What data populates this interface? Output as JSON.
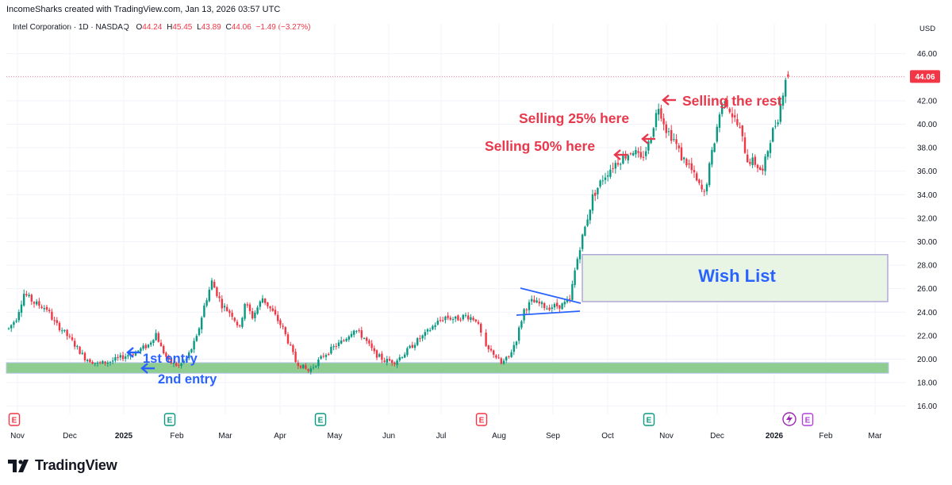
{
  "header": {
    "attribution": "IncomeSharks created with TradingView.com, Jan 13, 2026 03:57 UTC"
  },
  "legend": {
    "symbol": "Intel Corporation · 1D · NASDAQ",
    "o_label": "O",
    "o_value": "44.24",
    "h_label": "H",
    "h_value": "45.45",
    "l_label": "L",
    "l_value": "43.89",
    "c_label": "C",
    "c_value": "44.06",
    "change": "−1.49 (−3.27%)"
  },
  "footer": {
    "brand": "TradingView"
  },
  "colors": {
    "up": "#089981",
    "down": "#f23645",
    "annotation_red": "#e8384b",
    "annotation_blue": "#2962ff",
    "support_zone": "#8fcc8f",
    "wishlist_fill": "#e8f5e4",
    "wishlist_border": "#b0a9d6",
    "last_price_badge": "#f23645"
  },
  "chart_data": {
    "type": "candlestick",
    "currency_label": "USD",
    "y_ticks": [
      "16.00",
      "18.00",
      "20.00",
      "22.00",
      "24.00",
      "26.00",
      "28.00",
      "30.00",
      "32.00",
      "34.00",
      "36.00",
      "38.00",
      "40.00",
      "42.00",
      "44.00",
      "46.00"
    ],
    "ylim": [
      15.3,
      47.6
    ],
    "x_tick_labels": [
      "Nov",
      "Dec",
      "2025",
      "Feb",
      "Mar",
      "Apr",
      "May",
      "Jun",
      "Jul",
      "Aug",
      "Sep",
      "Oct",
      "Nov",
      "Dec",
      "2026",
      "Feb",
      "Mar"
    ],
    "x_tick_bold": [
      false,
      false,
      true,
      false,
      false,
      false,
      false,
      false,
      false,
      false,
      false,
      false,
      false,
      false,
      true,
      false,
      false
    ],
    "last_price": "44.06",
    "last_price_value": 44.06,
    "trend_anchors": [
      [
        0,
        22.6
      ],
      [
        3,
        23.5
      ],
      [
        6,
        25.6
      ],
      [
        10,
        24.8
      ],
      [
        15,
        24.3
      ],
      [
        18,
        23.1
      ],
      [
        21,
        22.5
      ],
      [
        25,
        21.5
      ],
      [
        30,
        20.1
      ],
      [
        35,
        19.6
      ],
      [
        40,
        19.8
      ],
      [
        45,
        20.2
      ],
      [
        50,
        20.6
      ],
      [
        55,
        21.2
      ],
      [
        58,
        22.2
      ],
      [
        60,
        21.0
      ],
      [
        63,
        19.8
      ],
      [
        67,
        19.4
      ],
      [
        70,
        20.0
      ],
      [
        74,
        21.8
      ],
      [
        77,
        24.5
      ],
      [
        80,
        26.6
      ],
      [
        84,
        24.6
      ],
      [
        88,
        23.8
      ],
      [
        91,
        22.6
      ],
      [
        93,
        24.8
      ],
      [
        96,
        23.6
      ],
      [
        100,
        25.2
      ],
      [
        104,
        24.0
      ],
      [
        108,
        22.6
      ],
      [
        111,
        21.0
      ],
      [
        113,
        19.8
      ],
      [
        116,
        19.3
      ],
      [
        118,
        19.0
      ],
      [
        120,
        19.4
      ],
      [
        124,
        20.3
      ],
      [
        128,
        21.0
      ],
      [
        132,
        21.6
      ],
      [
        136,
        22.6
      ],
      [
        140,
        21.8
      ],
      [
        144,
        20.5
      ],
      [
        148,
        19.9
      ],
      [
        152,
        19.8
      ],
      [
        156,
        20.5
      ],
      [
        160,
        21.4
      ],
      [
        164,
        22.1
      ],
      [
        168,
        23.0
      ],
      [
        172,
        23.6
      ],
      [
        176,
        23.4
      ],
      [
        180,
        23.7
      ],
      [
        184,
        23.4
      ],
      [
        188,
        20.9
      ],
      [
        191,
        20.5
      ],
      [
        194,
        19.6
      ],
      [
        197,
        20.2
      ],
      [
        200,
        21.7
      ],
      [
        203,
        24.2
      ],
      [
        206,
        24.9
      ],
      [
        209,
        24.7
      ],
      [
        212,
        24.4
      ],
      [
        215,
        24.5
      ],
      [
        218,
        24.6
      ],
      [
        221,
        25.0
      ],
      [
        223,
        27.5
      ],
      [
        225,
        29.6
      ],
      [
        227,
        31.2
      ],
      [
        230,
        33.8
      ],
      [
        234,
        35.4
      ],
      [
        238,
        36.5
      ],
      [
        242,
        37.2
      ],
      [
        246,
        37.8
      ],
      [
        249,
        36.9
      ],
      [
        252,
        38.3
      ],
      [
        254,
        40.0
      ],
      [
        256,
        41.6
      ],
      [
        259,
        39.6
      ],
      [
        262,
        38.7
      ],
      [
        265,
        37.2
      ],
      [
        268,
        36.5
      ],
      [
        271,
        35.1
      ],
      [
        274,
        34.0
      ],
      [
        277,
        37.5
      ],
      [
        280,
        40.9
      ],
      [
        282,
        42.3
      ],
      [
        285,
        40.8
      ],
      [
        288,
        39.5
      ],
      [
        291,
        37.0
      ],
      [
        294,
        36.7
      ],
      [
        297,
        35.9
      ],
      [
        300,
        38.8
      ],
      [
        303,
        40.6
      ],
      [
        306,
        44.0
      ],
      [
        307,
        44.06
      ]
    ],
    "gap_ranges": [
      [
        186,
        188
      ]
    ],
    "n_days": 308,
    "annotations": [
      {
        "text": "Selling 25% here",
        "color": "red"
      },
      {
        "text": "Selling 50% here",
        "color": "red"
      },
      {
        "text": "Selling the rest",
        "color": "red"
      },
      {
        "text": "1st entry",
        "color": "blue"
      },
      {
        "text": "2nd entry",
        "color": "blue"
      },
      {
        "text": "Wish List",
        "color": "blue"
      }
    ],
    "zones": {
      "support": [
        18.8,
        19.7
      ],
      "wish_list": [
        24.9,
        28.9
      ]
    },
    "earnings_markers": [
      {
        "label": "E",
        "color": "red"
      },
      {
        "label": "E",
        "color": "green"
      },
      {
        "label": "E",
        "color": "green"
      },
      {
        "label": "E",
        "color": "red"
      },
      {
        "label": "E",
        "color": "green"
      },
      {
        "label": "E",
        "color": "purple"
      }
    ]
  }
}
